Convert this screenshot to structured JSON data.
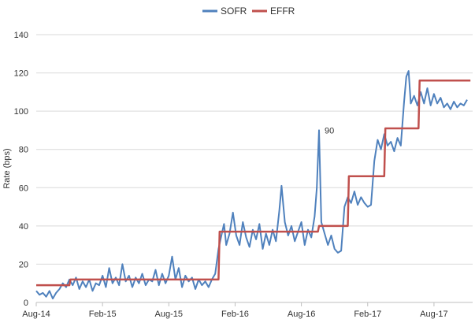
{
  "chart_data": {
    "type": "line",
    "title": "",
    "xlabel": "",
    "ylabel": "Rate (bps)",
    "ylim": [
      0,
      140
    ],
    "yticks": [
      0,
      20,
      40,
      60,
      80,
      100,
      120,
      140
    ],
    "xlim": [
      0,
      39.5
    ],
    "xticks": [
      {
        "label": "Aug-14",
        "x": 0
      },
      {
        "label": "Feb-15",
        "x": 6
      },
      {
        "label": "Aug-15",
        "x": 12
      },
      {
        "label": "Feb-16",
        "x": 18
      },
      {
        "label": "Aug-16",
        "x": 24
      },
      {
        "label": "Feb-17",
        "x": 30
      },
      {
        "label": "Aug-17",
        "x": 36
      }
    ],
    "grid": true,
    "legend_position": "top-center",
    "colors": {
      "SOFR": "#4f81bd",
      "EFFR": "#c0504d",
      "grid": "#d9d9d9",
      "axis": "#bfbfbf"
    },
    "annotations": [
      {
        "text": "90",
        "x": 25.6,
        "y": 90
      }
    ],
    "series": [
      {
        "name": "SOFR",
        "points": [
          [
            0,
            6
          ],
          [
            0.3,
            4
          ],
          [
            0.6,
            5
          ],
          [
            0.9,
            3
          ],
          [
            1.2,
            6
          ],
          [
            1.5,
            2
          ],
          [
            1.8,
            5
          ],
          [
            2.1,
            7
          ],
          [
            2.4,
            10
          ],
          [
            2.7,
            8
          ],
          [
            3,
            12
          ],
          [
            3.3,
            9
          ],
          [
            3.6,
            13
          ],
          [
            3.9,
            7
          ],
          [
            4.2,
            11
          ],
          [
            4.5,
            8
          ],
          [
            4.8,
            12
          ],
          [
            5.1,
            6
          ],
          [
            5.4,
            10
          ],
          [
            5.7,
            9
          ],
          [
            6,
            14
          ],
          [
            6.3,
            8
          ],
          [
            6.6,
            18
          ],
          [
            6.9,
            10
          ],
          [
            7.2,
            13
          ],
          [
            7.5,
            9
          ],
          [
            7.8,
            20
          ],
          [
            8.1,
            11
          ],
          [
            8.4,
            14
          ],
          [
            8.7,
            8
          ],
          [
            9,
            13
          ],
          [
            9.3,
            10
          ],
          [
            9.6,
            15
          ],
          [
            9.9,
            9
          ],
          [
            10.2,
            12
          ],
          [
            10.5,
            11
          ],
          [
            10.8,
            17
          ],
          [
            11.1,
            9
          ],
          [
            11.4,
            15
          ],
          [
            11.7,
            10
          ],
          [
            12,
            14
          ],
          [
            12.3,
            24
          ],
          [
            12.6,
            12
          ],
          [
            12.9,
            18
          ],
          [
            13.2,
            8
          ],
          [
            13.5,
            14
          ],
          [
            13.8,
            11
          ],
          [
            14.1,
            13
          ],
          [
            14.4,
            7
          ],
          [
            14.7,
            12
          ],
          [
            15,
            9
          ],
          [
            15.3,
            11
          ],
          [
            15.6,
            8
          ],
          [
            15.9,
            12
          ],
          [
            16.2,
            15
          ],
          [
            16.5,
            28
          ],
          [
            16.8,
            36
          ],
          [
            17,
            41
          ],
          [
            17.2,
            30
          ],
          [
            17.5,
            36
          ],
          [
            17.8,
            47
          ],
          [
            18.1,
            35
          ],
          [
            18.4,
            30
          ],
          [
            18.7,
            42
          ],
          [
            19,
            34
          ],
          [
            19.3,
            29
          ],
          [
            19.6,
            38
          ],
          [
            19.9,
            33
          ],
          [
            20.2,
            41
          ],
          [
            20.5,
            28
          ],
          [
            20.8,
            36
          ],
          [
            21.1,
            30
          ],
          [
            21.4,
            38
          ],
          [
            21.7,
            32
          ],
          [
            22,
            48
          ],
          [
            22.2,
            61
          ],
          [
            22.5,
            42
          ],
          [
            22.8,
            35
          ],
          [
            23.1,
            40
          ],
          [
            23.4,
            32
          ],
          [
            23.7,
            37
          ],
          [
            24,
            42
          ],
          [
            24.3,
            30
          ],
          [
            24.6,
            38
          ],
          [
            24.9,
            34
          ],
          [
            25.2,
            45
          ],
          [
            25.4,
            60
          ],
          [
            25.6,
            90
          ],
          [
            25.8,
            42
          ],
          [
            26.1,
            36
          ],
          [
            26.4,
            30
          ],
          [
            26.7,
            35
          ],
          [
            27,
            28
          ],
          [
            27.3,
            26
          ],
          [
            27.6,
            27
          ],
          [
            27.9,
            50
          ],
          [
            28.2,
            55
          ],
          [
            28.5,
            52
          ],
          [
            28.8,
            58
          ],
          [
            29.1,
            51
          ],
          [
            29.4,
            55
          ],
          [
            29.7,
            52
          ],
          [
            30,
            50
          ],
          [
            30.3,
            51
          ],
          [
            30.6,
            74
          ],
          [
            30.9,
            85
          ],
          [
            31.2,
            80
          ],
          [
            31.5,
            88
          ],
          [
            31.8,
            82
          ],
          [
            32.1,
            84
          ],
          [
            32.4,
            79
          ],
          [
            32.7,
            86
          ],
          [
            33,
            82
          ],
          [
            33.3,
            105
          ],
          [
            33.5,
            118
          ],
          [
            33.7,
            121
          ],
          [
            33.9,
            104
          ],
          [
            34.2,
            108
          ],
          [
            34.5,
            103
          ],
          [
            34.8,
            110
          ],
          [
            35.1,
            104
          ],
          [
            35.4,
            112
          ],
          [
            35.7,
            103
          ],
          [
            36,
            109
          ],
          [
            36.3,
            104
          ],
          [
            36.6,
            107
          ],
          [
            36.9,
            102
          ],
          [
            37.2,
            104
          ],
          [
            37.5,
            101
          ],
          [
            37.8,
            105
          ],
          [
            38.1,
            102
          ],
          [
            38.4,
            104
          ],
          [
            38.7,
            103
          ],
          [
            39,
            106
          ]
        ]
      },
      {
        "name": "EFFR",
        "points": [
          [
            0,
            9
          ],
          [
            3,
            9
          ],
          [
            3.1,
            12
          ],
          [
            16.5,
            12
          ],
          [
            16.6,
            37
          ],
          [
            25.5,
            37
          ],
          [
            25.6,
            40
          ],
          [
            28.2,
            40
          ],
          [
            28.3,
            66
          ],
          [
            31.5,
            66
          ],
          [
            31.6,
            91
          ],
          [
            34.6,
            91
          ],
          [
            34.7,
            116
          ],
          [
            39.3,
            116
          ]
        ]
      }
    ]
  }
}
